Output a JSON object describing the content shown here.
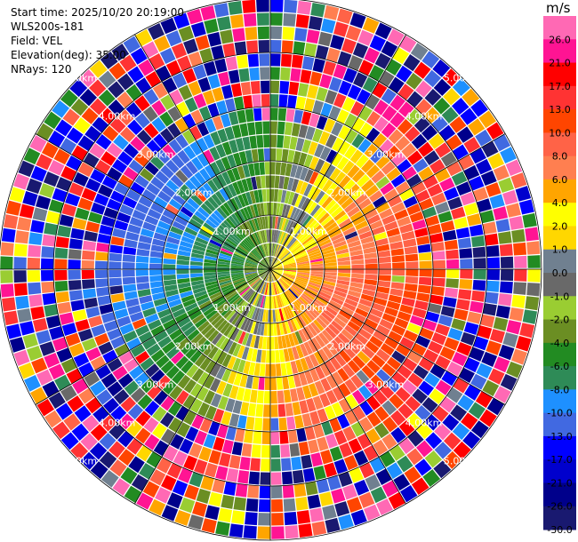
{
  "header": {
    "start_time": "Start time: 2025/10/20 20:19:00",
    "station": "WLS200s-181",
    "field": "Field: VEL",
    "elevation": "Elevation(deg): 35.00",
    "nrays": "NRays: 120"
  },
  "chart_data": {
    "type": "heatmap",
    "projection": "polar-ppi",
    "field": "VEL",
    "units": "m/s",
    "n_rays": 120,
    "elevation_deg": 35.0,
    "range_rings_km": [
      1.0,
      2.0,
      3.0,
      4.0,
      5.0
    ],
    "range_ring_labels": [
      "1.00km",
      "2.00km",
      "3.00km",
      "4.00km",
      "5.00km"
    ],
    "max_range_km": 5.0,
    "pattern": {
      "approaching_sector_azimuth_deg": 290,
      "receding_sector_azimuth_deg": 110,
      "inner_clean_range_km": 2.7,
      "outer_noise": true
    },
    "colorbar": {
      "label": "m/s",
      "tick_labels": [
        "26.0",
        "21.0",
        "17.0",
        "13.0",
        "10.0",
        "8.0",
        "6.0",
        "4.0",
        "2.0",
        "1.0",
        "0.0",
        "-1.0",
        "-2.0",
        "-4.0",
        "-6.0",
        "-8.0",
        "-10.0",
        "-13.0",
        "-17.0",
        "-21.0",
        "-26.0",
        "-30.0"
      ],
      "bins": [
        {
          "upper": 30.0,
          "color": "#ff69b4"
        },
        {
          "upper": 26.0,
          "color": "#ff1493"
        },
        {
          "upper": 21.0,
          "color": "#ff0000"
        },
        {
          "upper": 17.0,
          "color": "#ff3333"
        },
        {
          "upper": 13.0,
          "color": "#ff4500"
        },
        {
          "upper": 10.0,
          "color": "#ff6347"
        },
        {
          "upper": 8.0,
          "color": "#ff7f50"
        },
        {
          "upper": 6.0,
          "color": "#ffa500"
        },
        {
          "upper": 4.0,
          "color": "#ffff00"
        },
        {
          "upper": 2.0,
          "color": "#ffd700"
        },
        {
          "upper": 1.0,
          "color": "#708090"
        },
        {
          "upper": 0.0,
          "color": "#696969"
        },
        {
          "upper": -1.0,
          "color": "#9acd32"
        },
        {
          "upper": -2.0,
          "color": "#6b8e23"
        },
        {
          "upper": -4.0,
          "color": "#228b22"
        },
        {
          "upper": -6.0,
          "color": "#2e8b57"
        },
        {
          "upper": -8.0,
          "color": "#1e90ff"
        },
        {
          "upper": -10.0,
          "color": "#4169e1"
        },
        {
          "upper": -13.0,
          "color": "#0000ff"
        },
        {
          "upper": -17.0,
          "color": "#0000cd"
        },
        {
          "upper": -21.0,
          "color": "#00008b"
        },
        {
          "upper": -26.0,
          "color": "#191970"
        }
      ]
    }
  }
}
